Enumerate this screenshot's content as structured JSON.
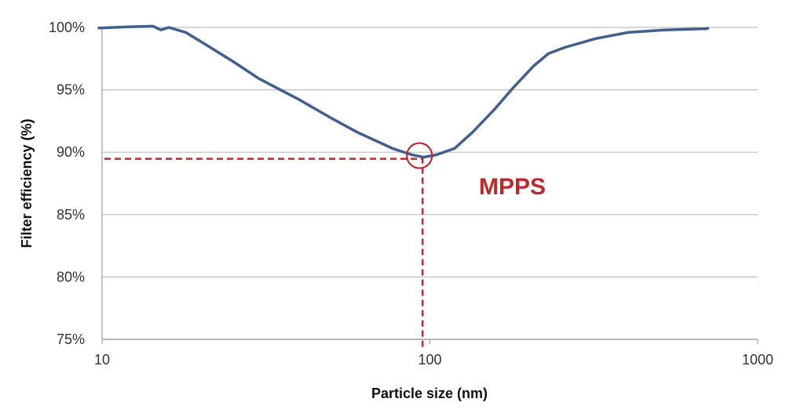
{
  "chart_data": {
    "type": "line",
    "title": "",
    "xlabel": "Particle size (nm)",
    "ylabel": "Filter efficiency (%)",
    "xscale": "log",
    "xlim": [
      10,
      1000
    ],
    "ylim": [
      75,
      100
    ],
    "grid": "horizontal",
    "x_ticks": [
      10,
      100,
      1000
    ],
    "x_tick_labels": [
      "10",
      "100",
      "1000"
    ],
    "y_ticks": [
      75,
      80,
      85,
      90,
      95,
      100
    ],
    "y_tick_labels": [
      "75%",
      "80%",
      "85%",
      "90%",
      "95%",
      "100%"
    ],
    "series": [
      {
        "name": "Filter efficiency",
        "color": "#3f5f8f",
        "x": [
          9.7,
          12,
          14.3,
          15.1,
          16.0,
          18,
          20.5,
          25,
          30.1,
          40,
          49.5,
          60,
          76.9,
          88,
          95.7,
          105,
          119,
          135,
          157,
          180,
          207,
          230,
          258,
          320,
          402,
          520,
          698,
          710
        ],
        "y": [
          99.95,
          100.05,
          100.1,
          99.8,
          100.0,
          99.6,
          98.7,
          97.3,
          95.9,
          94.2,
          92.8,
          91.6,
          90.3,
          89.8,
          89.6,
          89.8,
          90.3,
          91.6,
          93.4,
          95.2,
          96.9,
          97.9,
          98.4,
          99.1,
          99.6,
          99.8,
          99.9,
          99.95
        ]
      }
    ],
    "annotations": [
      {
        "text": "MPPS",
        "x": 95,
        "y": 89.6,
        "color": "#c0272d"
      }
    ]
  }
}
